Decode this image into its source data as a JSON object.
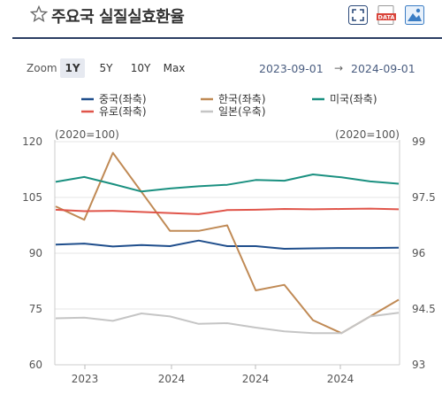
{
  "header": {
    "title": "주요국 실질실효환율",
    "star_icon": "star-outline-icon",
    "buttons": [
      "fullscreen-icon",
      "data-download-icon",
      "image-download-icon"
    ],
    "data_label": "DATA"
  },
  "zoom": {
    "label": "Zoom",
    "options": [
      "1Y",
      "5Y",
      "10Y",
      "Max"
    ],
    "active": "1Y"
  },
  "range": {
    "from": "2023-09-01",
    "arrow": "→",
    "to": "2024-09-01"
  },
  "chart_data": {
    "type": "line",
    "left_unit": "(2020=100)",
    "right_unit": "(2020=100)",
    "left_axis": {
      "ticks": [
        "120",
        "105",
        "90",
        "75",
        "60"
      ],
      "min": 60,
      "max": 120
    },
    "right_axis": {
      "ticks": [
        "99",
        "97.5",
        "96",
        "94.5",
        "93"
      ],
      "min": 93,
      "max": 99
    },
    "x_tick_labels": [
      "2023",
      "2024",
      "2024",
      "2024"
    ],
    "x_count": 13,
    "series": [
      {
        "name": "중국(좌축)",
        "color": "#1f4e8c",
        "axis": "left",
        "values": [
          92.3,
          92.6,
          91.8,
          92.2,
          91.9,
          93.4,
          91.9,
          91.9,
          91.2,
          91.3,
          91.4,
          91.4,
          91.5
        ]
      },
      {
        "name": "한국(좌축)",
        "color": "#c08a55",
        "axis": "left",
        "values": [
          102.6,
          99.0,
          117.0,
          106.5,
          96.0,
          96.0,
          97.5,
          80.0,
          81.5,
          72.0,
          68.5,
          73.0,
          77.5
        ]
      },
      {
        "name": "미국(좌축)",
        "color": "#1a9080",
        "axis": "left",
        "values": [
          109.2,
          110.5,
          108.6,
          106.6,
          107.4,
          108.0,
          108.4,
          109.7,
          109.5,
          111.2,
          110.4,
          109.3,
          108.7
        ]
      },
      {
        "name": "유로(좌축)",
        "color": "#e0554a",
        "axis": "left",
        "values": [
          101.7,
          101.3,
          101.4,
          101.1,
          100.8,
          100.5,
          101.6,
          101.7,
          101.9,
          101.8,
          101.9,
          102.0,
          101.8
        ]
      },
      {
        "name": "일본(우축)",
        "color": "#c5c5c5",
        "axis": "right",
        "values": [
          94.25,
          94.27,
          94.18,
          94.38,
          94.3,
          94.1,
          94.12,
          94.0,
          93.9,
          93.85,
          93.85,
          94.3,
          94.4
        ]
      }
    ]
  }
}
